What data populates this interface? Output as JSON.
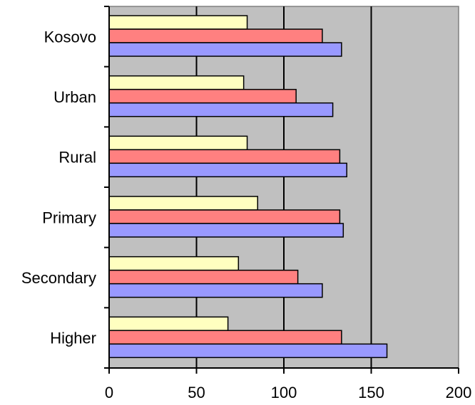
{
  "chart_data": {
    "type": "bar",
    "orientation": "horizontal",
    "categories": [
      "Kosovo",
      "Urban",
      "Rural",
      "Primary",
      "Secondary",
      "Higher"
    ],
    "series": [
      {
        "color": "#ffffc0",
        "values": [
          79,
          77,
          79,
          85,
          74,
          68
        ]
      },
      {
        "color": "#ff8080",
        "values": [
          122,
          107,
          132,
          132,
          108,
          133
        ]
      },
      {
        "color": "#9999ff",
        "values": [
          133,
          128,
          136,
          134,
          122,
          159
        ]
      }
    ],
    "xlim": [
      0,
      200
    ],
    "xticks": [
      0,
      50,
      100,
      150,
      200
    ],
    "xtick_labels": [
      "0",
      "50",
      "100",
      "150",
      "200"
    ],
    "grid": "vertical",
    "plot_background": "#c0c0c0",
    "title": "",
    "xlabel": "",
    "ylabel": ""
  }
}
